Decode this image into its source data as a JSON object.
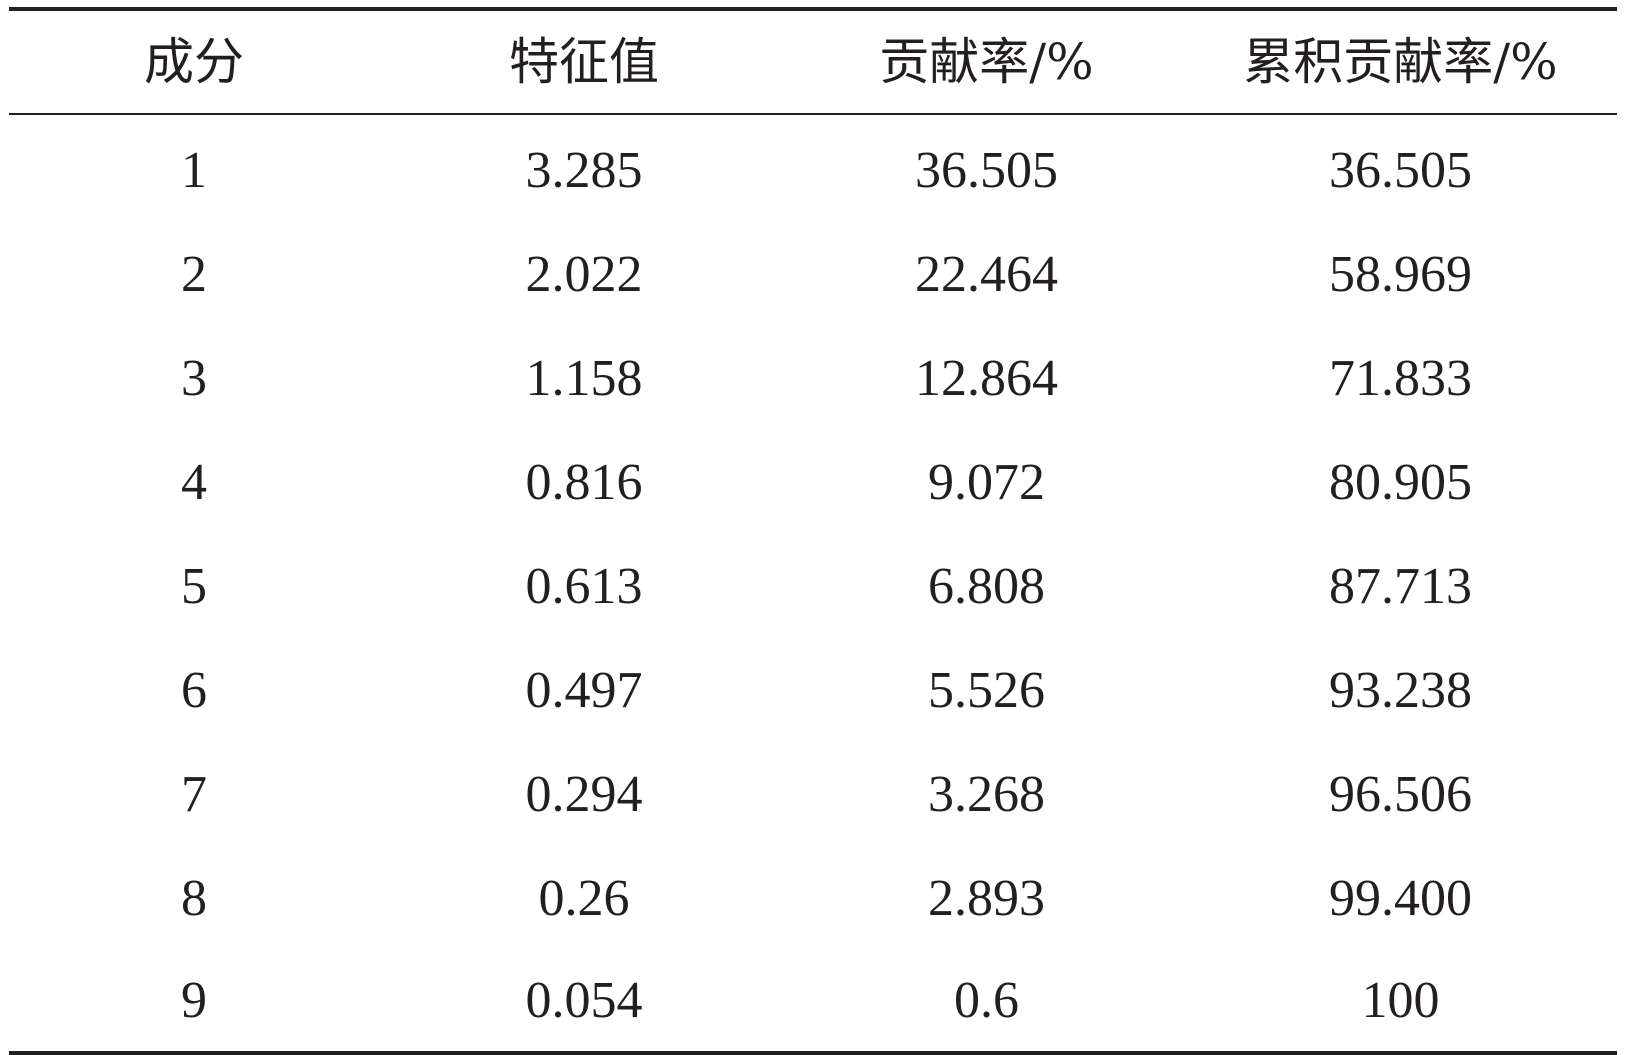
{
  "table": {
    "headers": [
      "成分",
      "特征值",
      "贡献率/%",
      "累积贡献率/%"
    ],
    "rows": [
      [
        "1",
        "3.285",
        "36.505",
        "36.505"
      ],
      [
        "2",
        "2.022",
        "22.464",
        "58.969"
      ],
      [
        "3",
        "1.158",
        "12.864",
        "71.833"
      ],
      [
        "4",
        "0.816",
        "9.072",
        "80.905"
      ],
      [
        "5",
        "0.613",
        "6.808",
        "87.713"
      ],
      [
        "6",
        "0.497",
        "5.526",
        "93.238"
      ],
      [
        "7",
        "0.294",
        "3.268",
        "96.506"
      ],
      [
        "8",
        "0.26",
        "2.893",
        "99.400"
      ],
      [
        "9",
        "0.054",
        "0.6",
        "100"
      ]
    ]
  }
}
